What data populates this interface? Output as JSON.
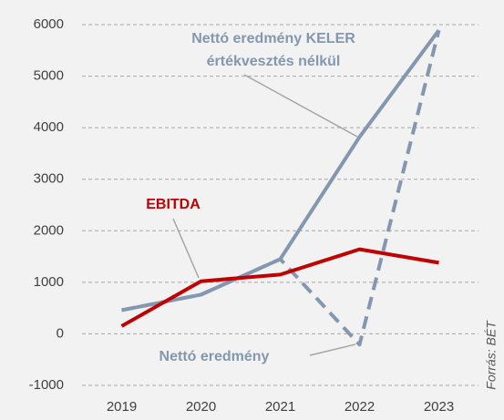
{
  "chart_data": {
    "type": "line",
    "categories": [
      "2019",
      "2020",
      "2021",
      "2022",
      "2023"
    ],
    "series": [
      {
        "name": "EBITDA",
        "color": "#c00000",
        "dashed": false,
        "values": [
          150,
          1020,
          1150,
          1640,
          1380
        ]
      },
      {
        "name": "Nettó eredmény",
        "color": "#8497b0",
        "dashed": true,
        "values": [
          460,
          760,
          1450,
          -210,
          5890
        ]
      },
      {
        "color": "#8497b0",
        "dashed": false,
        "values": [
          460,
          760,
          1450,
          3820,
          5890
        ]
      }
    ],
    "annotations": [
      "Nettó eredmény KELER",
      "értékvesztés nélkül"
    ],
    "source": "Forrás: BÉT",
    "ylim": [
      -1000,
      6000
    ],
    "yticks": [
      -1000,
      0,
      1000,
      2000,
      3000,
      4000,
      5000,
      6000
    ],
    "grid": true
  }
}
